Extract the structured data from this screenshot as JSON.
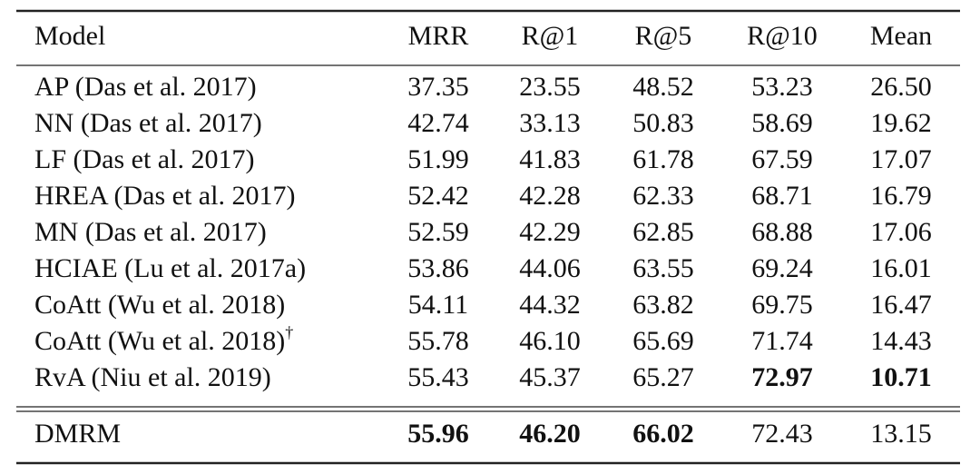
{
  "table": {
    "headers": [
      "Model",
      "MRR",
      "R@1",
      "R@5",
      "R@10",
      "Mean"
    ],
    "rows": [
      {
        "cells": [
          "AP (Das et al. 2017)",
          "37.35",
          "23.55",
          "48.52",
          "53.23",
          "26.50"
        ],
        "bold": []
      },
      {
        "cells": [
          "NN (Das et al. 2017)",
          "42.74",
          "33.13",
          "50.83",
          "58.69",
          "19.62"
        ],
        "bold": []
      },
      {
        "cells": [
          "LF (Das et al. 2017)",
          "51.99",
          "41.83",
          "61.78",
          "67.59",
          "17.07"
        ],
        "bold": []
      },
      {
        "cells": [
          "HREA (Das et al. 2017)",
          "52.42",
          "42.28",
          "62.33",
          "68.71",
          "16.79"
        ],
        "bold": []
      },
      {
        "cells": [
          "MN (Das et al. 2017)",
          "52.59",
          "42.29",
          "62.85",
          "68.88",
          "17.06"
        ],
        "bold": []
      },
      {
        "cells": [
          "HCIAE (Lu et al. 2017a)",
          "53.86",
          "44.06",
          "63.55",
          "69.24",
          "16.01"
        ],
        "bold": []
      },
      {
        "cells": [
          "CoAtt (Wu et al. 2018)",
          "54.11",
          "44.32",
          "63.82",
          "69.75",
          "16.47"
        ],
        "bold": []
      },
      {
        "cells": [
          "CoAtt (Wu et al. 2018)",
          "55.78",
          "46.10",
          "65.69",
          "71.74",
          "14.43"
        ],
        "bold": [],
        "note": "†"
      },
      {
        "cells": [
          "RvA (Niu et al. 2019)",
          "55.43",
          "45.37",
          "65.27",
          "72.97",
          "10.71"
        ],
        "bold": [
          4,
          5
        ]
      }
    ],
    "footer_rows": [
      {
        "cells": [
          "DMRM",
          "55.96",
          "46.20",
          "66.02",
          "72.43",
          "13.15"
        ],
        "bold": [
          1,
          2,
          3
        ]
      }
    ]
  }
}
